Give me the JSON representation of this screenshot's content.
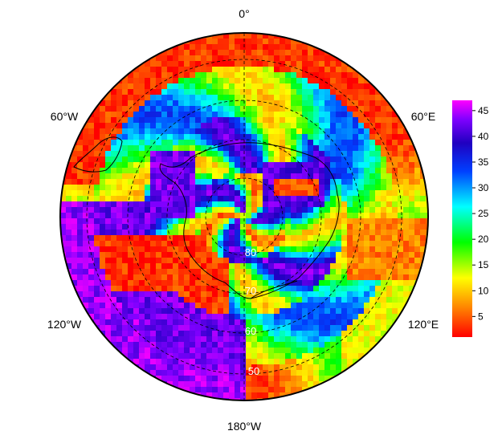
{
  "map": {
    "projection": "south polar stereographic",
    "longitude_labels": {
      "top": "0°",
      "upper_left": "60°W",
      "upper_right": "60°E",
      "lower_left": "120°W",
      "lower_right": "120°E",
      "bottom": "180°W"
    },
    "latitude_labels": [
      "80",
      "70",
      "60",
      "50"
    ],
    "field_regions": [
      {
        "description": "outer ring north",
        "value": 5
      },
      {
        "description": "outer ring west-pacific",
        "value": 43
      },
      {
        "description": "east antarctic interior",
        "value": 40
      },
      {
        "description": "ross sea sector",
        "value": 3
      }
    ]
  },
  "colorbar": {
    "ticks": [
      "45",
      "40",
      "35",
      "30",
      "25",
      "20",
      "15",
      "10",
      "5"
    ],
    "min": 1,
    "max": 47,
    "colors": [
      "#ff0000",
      "#ff7f00",
      "#ffff00",
      "#00ff00",
      "#00ffff",
      "#0000ff",
      "#8000ff",
      "#ff00ff"
    ]
  }
}
